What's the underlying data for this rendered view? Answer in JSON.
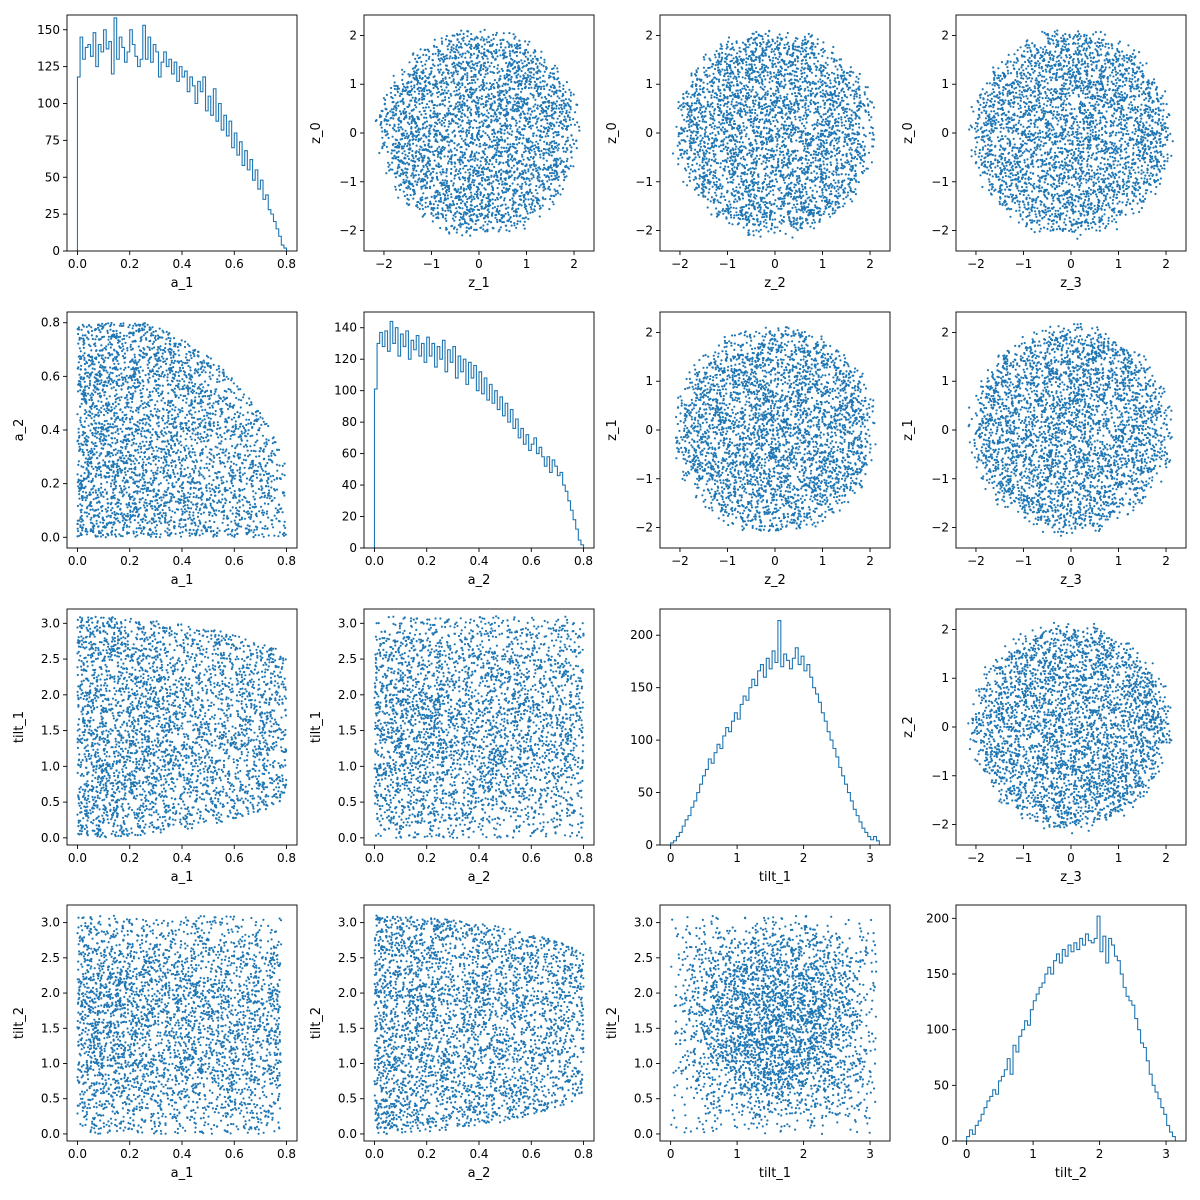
{
  "figure": {
    "series_color": "#1f77b4"
  },
  "chart_data": [
    {
      "panel": "r0c0",
      "type": "histogram",
      "xlabel": "a_1",
      "ylabel": "",
      "xlim": [
        -0.04,
        0.84
      ],
      "ylim": [
        0,
        160
      ],
      "xticks": [
        0.0,
        0.2,
        0.4,
        0.6,
        0.8
      ],
      "xtick_labels": [
        "0.0",
        "0.2",
        "0.4",
        "0.6",
        "0.8"
      ],
      "yticks": [
        0,
        25,
        50,
        75,
        100,
        125,
        150
      ],
      "ytick_labels": [
        "0",
        "25",
        "50",
        "75",
        "100",
        "125",
        "150"
      ],
      "bin_range": [
        0.0,
        0.8
      ],
      "values": [
        118,
        145,
        130,
        138,
        140,
        132,
        148,
        125,
        140,
        135,
        150,
        137,
        142,
        120,
        158,
        130,
        145,
        138,
        128,
        135,
        150,
        140,
        132,
        125,
        130,
        153,
        130,
        145,
        128,
        140,
        135,
        118,
        128,
        135,
        125,
        130,
        120,
        128,
        115,
        125,
        118,
        122,
        108,
        118,
        112,
        100,
        115,
        108,
        118,
        95,
        105,
        92,
        110,
        88,
        100,
        82,
        92,
        78,
        88,
        70,
        80,
        65,
        74,
        58,
        68,
        55,
        62,
        48,
        55,
        42,
        48,
        35,
        38,
        28,
        25,
        20,
        15,
        10,
        4,
        2
      ]
    },
    {
      "panel": "r0c1",
      "type": "scatter",
      "shape": "disk",
      "xrange": [
        -2.2,
        2.2
      ],
      "yrange": [
        -2.2,
        2.2
      ],
      "n": 3400,
      "seed": 11,
      "xlabel": "z_1",
      "ylabel": "z_0",
      "xlim": [
        -2.42,
        2.42
      ],
      "ylim": [
        -2.42,
        2.42
      ],
      "xticks": [
        -2,
        -1,
        0,
        1,
        2
      ],
      "xtick_labels": [
        "−2",
        "−1",
        "0",
        "1",
        "2"
      ],
      "yticks": [
        -2,
        -1,
        0,
        1,
        2
      ],
      "ytick_labels": [
        "−2",
        "−1",
        "0",
        "1",
        "2"
      ]
    },
    {
      "panel": "r0c2",
      "type": "scatter",
      "shape": "disk",
      "xrange": [
        -2.2,
        2.2
      ],
      "yrange": [
        -2.2,
        2.2
      ],
      "n": 3400,
      "seed": 12,
      "xlabel": "z_2",
      "ylabel": "z_0",
      "xlim": [
        -2.42,
        2.42
      ],
      "ylim": [
        -2.42,
        2.42
      ],
      "xticks": [
        -2,
        -1,
        0,
        1,
        2
      ],
      "xtick_labels": [
        "−2",
        "−1",
        "0",
        "1",
        "2"
      ],
      "yticks": [
        -2,
        -1,
        0,
        1,
        2
      ],
      "ytick_labels": [
        "−2",
        "−1",
        "0",
        "1",
        "2"
      ]
    },
    {
      "panel": "r0c3",
      "type": "scatter",
      "shape": "disk",
      "xrange": [
        -2.2,
        2.2
      ],
      "yrange": [
        -2.2,
        2.2
      ],
      "n": 3400,
      "seed": 13,
      "xlabel": "z_3",
      "ylabel": "z_0",
      "xlim": [
        -2.42,
        2.42
      ],
      "ylim": [
        -2.42,
        2.42
      ],
      "xticks": [
        -2,
        -1,
        0,
        1,
        2
      ],
      "xtick_labels": [
        "−2",
        "−1",
        "0",
        "1",
        "2"
      ],
      "yticks": [
        -2,
        -1,
        0,
        1,
        2
      ],
      "ytick_labels": [
        "−2",
        "−1",
        "0",
        "1",
        "2"
      ]
    },
    {
      "panel": "r1c0",
      "type": "scatter",
      "shape": "quarter",
      "xrange": [
        0.0,
        0.8
      ],
      "yrange": [
        0.0,
        0.8
      ],
      "n": 3400,
      "seed": 21,
      "xlabel": "a_1",
      "ylabel": "a_2",
      "xlim": [
        -0.04,
        0.84
      ],
      "ylim": [
        -0.04,
        0.84
      ],
      "xticks": [
        0.0,
        0.2,
        0.4,
        0.6,
        0.8
      ],
      "xtick_labels": [
        "0.0",
        "0.2",
        "0.4",
        "0.6",
        "0.8"
      ],
      "yticks": [
        0.0,
        0.2,
        0.4,
        0.6,
        0.8
      ],
      "ytick_labels": [
        "0.0",
        "0.2",
        "0.4",
        "0.6",
        "0.8"
      ]
    },
    {
      "panel": "r1c1",
      "type": "histogram",
      "xlabel": "a_2",
      "ylabel": "",
      "xlim": [
        -0.04,
        0.84
      ],
      "ylim": [
        0,
        150
      ],
      "xticks": [
        0.0,
        0.2,
        0.4,
        0.6,
        0.8
      ],
      "xtick_labels": [
        "0.0",
        "0.2",
        "0.4",
        "0.6",
        "0.8"
      ],
      "yticks": [
        0,
        20,
        40,
        60,
        80,
        100,
        120,
        140
      ],
      "ytick_labels": [
        "0",
        "20",
        "40",
        "60",
        "80",
        "100",
        "120",
        "140"
      ],
      "bin_range": [
        0.0,
        0.8
      ],
      "values": [
        101,
        130,
        137,
        128,
        138,
        125,
        144,
        130,
        140,
        122,
        136,
        128,
        138,
        120,
        132,
        126,
        135,
        122,
        130,
        118,
        134,
        122,
        130,
        115,
        128,
        120,
        132,
        112,
        126,
        118,
        128,
        108,
        122,
        112,
        120,
        104,
        118,
        108,
        116,
        100,
        112,
        98,
        108,
        94,
        104,
        92,
        100,
        88,
        96,
        84,
        92,
        80,
        88,
        76,
        82,
        70,
        76,
        66,
        72,
        62,
        66,
        70,
        60,
        64,
        58,
        52,
        58,
        48,
        56,
        52,
        46,
        48,
        40,
        36,
        30,
        24,
        18,
        12,
        5,
        2
      ]
    },
    {
      "panel": "r1c2",
      "type": "scatter",
      "shape": "disk",
      "xrange": [
        -2.2,
        2.2
      ],
      "yrange": [
        -2.2,
        2.2
      ],
      "n": 3400,
      "seed": 23,
      "xlabel": "z_2",
      "ylabel": "z_1",
      "xlim": [
        -2.42,
        2.42
      ],
      "ylim": [
        -2.42,
        2.42
      ],
      "xticks": [
        -2,
        -1,
        0,
        1,
        2
      ],
      "xtick_labels": [
        "−2",
        "−1",
        "0",
        "1",
        "2"
      ],
      "yticks": [
        -2,
        -1,
        0,
        1,
        2
      ],
      "ytick_labels": [
        "−2",
        "−1",
        "0",
        "1",
        "2"
      ]
    },
    {
      "panel": "r1c3",
      "type": "scatter",
      "shape": "disk",
      "xrange": [
        -2.2,
        2.2
      ],
      "yrange": [
        -2.2,
        2.2
      ],
      "n": 3400,
      "seed": 24,
      "xlabel": "z_3",
      "ylabel": "z_1",
      "xlim": [
        -2.42,
        2.42
      ],
      "ylim": [
        -2.42,
        2.42
      ],
      "xticks": [
        -2,
        -1,
        0,
        1,
        2
      ],
      "xtick_labels": [
        "−2",
        "−1",
        "0",
        "1",
        "2"
      ],
      "yticks": [
        -2,
        -1,
        0,
        1,
        2
      ],
      "ytick_labels": [
        "−2",
        "−1",
        "0",
        "1",
        "2"
      ]
    },
    {
      "panel": "r2c0",
      "type": "scatter",
      "shape": "taper",
      "xrange": [
        0.0,
        0.8
      ],
      "yrange": [
        0.0,
        3.1
      ],
      "n": 3400,
      "seed": 31,
      "xlabel": "a_1",
      "ylabel": "tilt_1",
      "xlim": [
        -0.04,
        0.84
      ],
      "ylim": [
        -0.1,
        3.2
      ],
      "xticks": [
        0.0,
        0.2,
        0.4,
        0.6,
        0.8
      ],
      "xtick_labels": [
        "0.0",
        "0.2",
        "0.4",
        "0.6",
        "0.8"
      ],
      "yticks": [
        0.0,
        0.5,
        1.0,
        1.5,
        2.0,
        2.5,
        3.0
      ],
      "ytick_labels": [
        "0.0",
        "0.5",
        "1.0",
        "1.5",
        "2.0",
        "2.5",
        "3.0"
      ]
    },
    {
      "panel": "r2c1",
      "type": "scatter",
      "shape": "rect",
      "xrange": [
        0.0,
        0.8
      ],
      "yrange": [
        0.0,
        3.1
      ],
      "n": 3400,
      "seed": 32,
      "xlabel": "a_2",
      "ylabel": "tilt_1",
      "xlim": [
        -0.04,
        0.84
      ],
      "ylim": [
        -0.1,
        3.2
      ],
      "xticks": [
        0.0,
        0.2,
        0.4,
        0.6,
        0.8
      ],
      "xtick_labels": [
        "0.0",
        "0.2",
        "0.4",
        "0.6",
        "0.8"
      ],
      "yticks": [
        0.0,
        0.5,
        1.0,
        1.5,
        2.0,
        2.5,
        3.0
      ],
      "ytick_labels": [
        "0.0",
        "0.5",
        "1.0",
        "1.5",
        "2.0",
        "2.5",
        "3.0"
      ]
    },
    {
      "panel": "r2c2",
      "type": "histogram",
      "xlabel": "tilt_1",
      "ylabel": "",
      "xlim": [
        -0.16,
        3.3
      ],
      "ylim": [
        0,
        225
      ],
      "xticks": [
        0,
        1,
        2,
        3
      ],
      "xtick_labels": [
        "0",
        "1",
        "2",
        "3"
      ],
      "yticks": [
        0,
        50,
        100,
        150,
        200
      ],
      "ytick_labels": [
        "0",
        "50",
        "100",
        "150",
        "200"
      ],
      "bin_range": [
        0.0,
        3.14
      ],
      "values": [
        2,
        4,
        8,
        12,
        18,
        24,
        28,
        36,
        42,
        50,
        58,
        66,
        72,
        82,
        78,
        88,
        96,
        92,
        104,
        112,
        108,
        118,
        126,
        120,
        134,
        142,
        138,
        150,
        158,
        152,
        166,
        172,
        160,
        178,
        168,
        185,
        174,
        214,
        170,
        182,
        176,
        168,
        178,
        188,
        172,
        180,
        166,
        172,
        160,
        150,
        144,
        136,
        126,
        118,
        108,
        100,
        92,
        84,
        74,
        66,
        58,
        50,
        42,
        34,
        28,
        22,
        16,
        12,
        8,
        5,
        8,
        4
      ]
    },
    {
      "panel": "r2c3",
      "type": "scatter",
      "shape": "disk",
      "xrange": [
        -2.2,
        2.2
      ],
      "yrange": [
        -2.2,
        2.2
      ],
      "n": 3400,
      "seed": 34,
      "xlabel": "z_3",
      "ylabel": "z_2",
      "xlim": [
        -2.42,
        2.42
      ],
      "ylim": [
        -2.42,
        2.42
      ],
      "xticks": [
        -2,
        -1,
        0,
        1,
        2
      ],
      "xtick_labels": [
        "−2",
        "−1",
        "0",
        "1",
        "2"
      ],
      "yticks": [
        -2,
        -1,
        0,
        1,
        2
      ],
      "ytick_labels": [
        "−2",
        "−1",
        "0",
        "1",
        "2"
      ]
    },
    {
      "panel": "r3c0",
      "type": "scatter",
      "shape": "rect",
      "xrange": [
        0.0,
        0.78
      ],
      "yrange": [
        0.0,
        3.1
      ],
      "n": 3400,
      "seed": 41,
      "xlabel": "a_1",
      "ylabel": "tilt_2",
      "xlim": [
        -0.04,
        0.84
      ],
      "ylim": [
        -0.1,
        3.25
      ],
      "xticks": [
        0.0,
        0.2,
        0.4,
        0.6,
        0.8
      ],
      "xtick_labels": [
        "0.0",
        "0.2",
        "0.4",
        "0.6",
        "0.8"
      ],
      "yticks": [
        0.0,
        0.5,
        1.0,
        1.5,
        2.0,
        2.5,
        3.0
      ],
      "ytick_labels": [
        "0.0",
        "0.5",
        "1.0",
        "1.5",
        "2.0",
        "2.5",
        "3.0"
      ]
    },
    {
      "panel": "r3c1",
      "type": "scatter",
      "shape": "taper",
      "xrange": [
        0.0,
        0.8
      ],
      "yrange": [
        0.0,
        3.1
      ],
      "n": 3400,
      "seed": 42,
      "xlabel": "a_2",
      "ylabel": "tilt_2",
      "xlim": [
        -0.04,
        0.84
      ],
      "ylim": [
        -0.1,
        3.25
      ],
      "xticks": [
        0.0,
        0.2,
        0.4,
        0.6,
        0.8
      ],
      "xtick_labels": [
        "0.0",
        "0.2",
        "0.4",
        "0.6",
        "0.8"
      ],
      "yticks": [
        0.0,
        0.5,
        1.0,
        1.5,
        2.0,
        2.5,
        3.0
      ],
      "ytick_labels": [
        "0.0",
        "0.5",
        "1.0",
        "1.5",
        "2.0",
        "2.5",
        "3.0"
      ]
    },
    {
      "panel": "r3c2",
      "type": "scatter",
      "shape": "sinebox",
      "xrange": [
        0.0,
        3.1
      ],
      "yrange": [
        0.0,
        3.1
      ],
      "n": 3400,
      "seed": 43,
      "xlabel": "tilt_1",
      "ylabel": "tilt_2",
      "xlim": [
        -0.16,
        3.3
      ],
      "ylim": [
        -0.1,
        3.25
      ],
      "xticks": [
        0,
        1,
        2,
        3
      ],
      "xtick_labels": [
        "0",
        "1",
        "2",
        "3"
      ],
      "yticks": [
        0.0,
        0.5,
        1.0,
        1.5,
        2.0,
        2.5,
        3.0
      ],
      "ytick_labels": [
        "0.0",
        "0.5",
        "1.0",
        "1.5",
        "2.0",
        "2.5",
        "3.0"
      ]
    },
    {
      "panel": "r3c3",
      "type": "histogram",
      "xlabel": "tilt_2",
      "ylabel": "",
      "xlim": [
        -0.16,
        3.3
      ],
      "ylim": [
        0,
        212
      ],
      "xticks": [
        0,
        1,
        2,
        3
      ],
      "xtick_labels": [
        "0",
        "1",
        "2",
        "3"
      ],
      "yticks": [
        0,
        50,
        100,
        150,
        200
      ],
      "ytick_labels": [
        "0",
        "50",
        "100",
        "150",
        "200"
      ],
      "bin_range": [
        0.0,
        3.14
      ],
      "values": [
        4,
        10,
        6,
        14,
        18,
        24,
        30,
        36,
        40,
        46,
        42,
        54,
        58,
        64,
        74,
        60,
        86,
        80,
        94,
        100,
        108,
        104,
        118,
        126,
        132,
        138,
        142,
        150,
        156,
        150,
        162,
        168,
        160,
        172,
        166,
        176,
        170,
        178,
        172,
        182,
        176,
        186,
        180,
        178,
        182,
        202,
        170,
        184,
        160,
        182,
        176,
        166,
        162,
        150,
        138,
        130,
        126,
        122,
        110,
        100,
        88,
        84,
        72,
        60,
        50,
        44,
        38,
        30,
        24,
        14,
        8,
        4
      ]
    }
  ]
}
